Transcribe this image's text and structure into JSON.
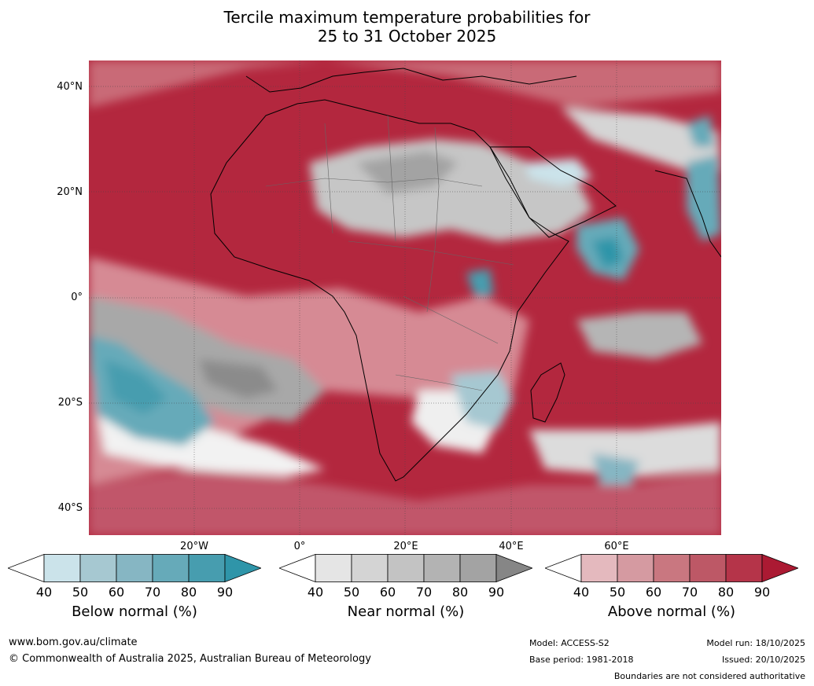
{
  "title": {
    "line1": "Tercile maximum temperature probabilities for",
    "line2": "25 to 31 October 2025"
  },
  "map": {
    "latitude_labels": [
      "40°N",
      "20°N",
      "0°",
      "20°S",
      "40°S"
    ],
    "longitude_labels": [
      "20°W",
      "0°",
      "20°E",
      "40°E",
      "60°E"
    ]
  },
  "colorbars": [
    {
      "title": "Below normal (%)",
      "ticks": [
        "40",
        "50",
        "60",
        "70",
        "80",
        "90"
      ],
      "colors": [
        "#ffffff",
        "#cbe3ea",
        "#a6c8d1",
        "#86b6c3",
        "#66aab9",
        "#479daf",
        "#2f95a9"
      ]
    },
    {
      "title": "Near normal (%)",
      "ticks": [
        "40",
        "50",
        "60",
        "70",
        "80",
        "90"
      ],
      "colors": [
        "#ffffff",
        "#e5e5e5",
        "#d4d4d4",
        "#c3c3c3",
        "#b3b3b3",
        "#a3a3a3",
        "#868686"
      ]
    },
    {
      "title": "Above normal (%)",
      "ticks": [
        "40",
        "50",
        "60",
        "70",
        "80",
        "90"
      ],
      "colors": [
        "#ffffff",
        "#e4b9be",
        "#d59aa1",
        "#c97780",
        "#bd5866",
        "#b53449",
        "#ab1a33"
      ]
    }
  ],
  "footer": {
    "website": "www.bom.gov.au/climate",
    "copyright": "© Commonwealth of Australia 2025, Australian Bureau of Meteorology",
    "model": "Model: ACCESS-S2",
    "base_period": "Base period: 1981-2018",
    "model_run": "Model run: 18/10/2025",
    "issued": "Issued: 20/10/2025",
    "disclaimer": "Boundaries are not considered authoritative"
  }
}
